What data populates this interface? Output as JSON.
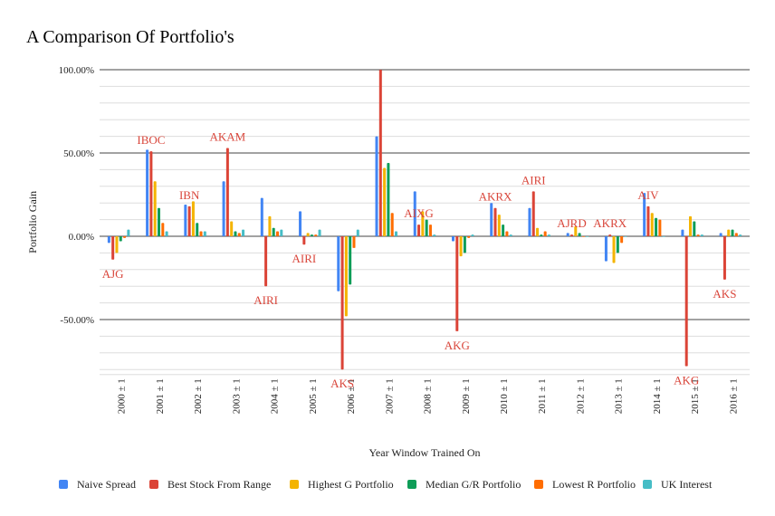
{
  "chart_data": {
    "type": "bar",
    "title": "A Comparison Of Portfolio's",
    "xlabel": "Year Window Trained On",
    "ylabel": "Portfolio Gain",
    "ylim": [
      -83,
      100
    ],
    "y_ticks": [
      100,
      50,
      0,
      -50
    ],
    "y_tick_labels": [
      "100.00%",
      "50.00%",
      "0.00%",
      "-50.00%"
    ],
    "categories": [
      "2000 ± 1",
      "2001 ± 1",
      "2002 ± 1",
      "2003 ± 1",
      "2004 ± 1",
      "2005 ± 1",
      "2006 ± 1",
      "2007 ± 1",
      "2008 ± 1",
      "2009 ± 1",
      "2010 ± 1",
      "2011 ± 1",
      "2012 ± 1",
      "2013 ± 1",
      "2014 ± 1",
      "2015 ± 1",
      "2016 ± 1"
    ],
    "grid": true,
    "legend_position": "bottom",
    "series": [
      {
        "name": "Naive Spread",
        "color": "#4285f4",
        "values": [
          -4,
          52,
          19,
          33,
          23,
          15,
          -33,
          60,
          27,
          -3,
          20,
          17,
          2,
          -15,
          26,
          4,
          2
        ]
      },
      {
        "name": "Best Stock From Range",
        "color": "#db4437",
        "values": [
          -14,
          51,
          18,
          53,
          -30,
          -5,
          -80,
          100,
          7,
          -57,
          17,
          27,
          1,
          1,
          18,
          -78,
          -26
        ]
      },
      {
        "name": "Highest G Portfolio",
        "color": "#f4b400",
        "values": [
          -10,
          33,
          21,
          9,
          12,
          2,
          -48,
          41,
          15,
          -12,
          13,
          5,
          6,
          -16,
          14,
          12,
          4
        ]
      },
      {
        "name": "Median G/R Portfolio",
        "color": "#0f9d58",
        "values": [
          -3,
          17,
          8,
          3,
          5,
          1,
          -29,
          44,
          10,
          -10,
          7,
          1,
          2,
          -10,
          11,
          9,
          4
        ]
      },
      {
        "name": "Lowest R Portfolio",
        "color": "#ff6d01",
        "values": [
          -1,
          8,
          3,
          2,
          3,
          1,
          -7,
          14,
          7,
          -1,
          3,
          3,
          0,
          -4,
          10,
          1,
          2
        ]
      },
      {
        "name": "UK Interest",
        "color": "#46bdc6",
        "values": [
          4,
          3,
          3,
          4,
          4,
          4,
          4,
          3,
          1,
          1,
          1,
          1,
          0,
          0,
          0,
          1,
          1
        ]
      }
    ],
    "annotations": [
      {
        "category": "2000 ± 1",
        "text": "AJG",
        "value": -14
      },
      {
        "category": "2001 ± 1",
        "text": "IBOC",
        "value": 51
      },
      {
        "category": "2002 ± 1",
        "text": "IBN",
        "value": 18
      },
      {
        "category": "2003 ± 1",
        "text": "AKAM",
        "value": 53
      },
      {
        "category": "2004 ± 1",
        "text": "AIRI",
        "value": -30
      },
      {
        "category": "2005 ± 1",
        "text": "AIRI",
        "value": -5
      },
      {
        "category": "2006 ± 1",
        "text": "AKS",
        "value": -80
      },
      {
        "category": "2008 ± 1",
        "text": "AIXG",
        "value": 7
      },
      {
        "category": "2009 ± 1",
        "text": "AKG",
        "value": -57
      },
      {
        "category": "2010 ± 1",
        "text": "AKRX",
        "value": 17
      },
      {
        "category": "2011 ± 1",
        "text": "AIRI",
        "value": 27
      },
      {
        "category": "2012 ± 1",
        "text": "AJRD",
        "value": 1
      },
      {
        "category": "2013 ± 1",
        "text": "AKRX",
        "value": 1
      },
      {
        "category": "2014 ± 1",
        "text": "AIV",
        "value": 18
      },
      {
        "category": "2015 ± 1",
        "text": "AKG",
        "value": -78
      },
      {
        "category": "2016 ± 1",
        "text": "AKS",
        "value": -26
      }
    ]
  }
}
